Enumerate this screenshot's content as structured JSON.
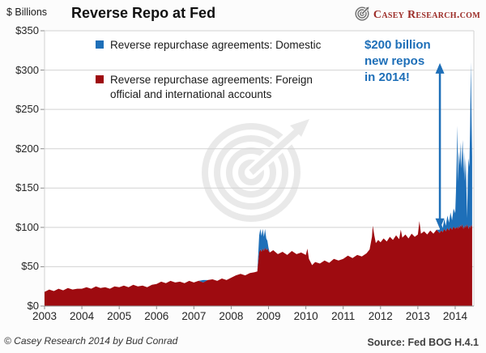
{
  "header": {
    "y_axis_title": "$ Billions",
    "title": "Reverse Repo at Fed",
    "brand": "Casey Research.com"
  },
  "annotation": {
    "lines": [
      "$200 billion",
      "new repos",
      "in 2014!"
    ],
    "color": "#1e6fb8",
    "arrow_x_year": 2013.59,
    "arrow_from_value": 98,
    "arrow_to_value": 309
  },
  "footer": {
    "copyright": "© Casey Research 2014 by Bud Conrad",
    "source": "Source: Fed BOG H.4.1"
  },
  "colors": {
    "domestic_blue": "#1e6fb8",
    "foreign_red": "#9e0b10",
    "grid": "#d2d2d2",
    "tick": "#8c8c8c",
    "watermark": "#e9e9e9",
    "brand_red": "#9c2b26"
  },
  "chart_data": {
    "type": "area",
    "stacked": true,
    "title": "Reverse Repo at Fed",
    "ylabel": "$ Billions",
    "x_range": [
      2003,
      2014.5
    ],
    "ylim": [
      0,
      350
    ],
    "grid": true,
    "legend_position": "top-inside",
    "y_tick_labels": [
      "$350",
      "$300",
      "$250",
      "$200",
      "$150",
      "$100",
      "$50",
      "$0"
    ],
    "y_tick_values": [
      350,
      300,
      250,
      200,
      150,
      100,
      50,
      0
    ],
    "x_tick_labels": [
      "2003",
      "2004",
      "2005",
      "2006",
      "2007",
      "2008",
      "2009",
      "2010",
      "2011",
      "2012",
      "2013",
      "2014"
    ],
    "series": [
      {
        "name": "Reverse repurchase agreements: Domestic",
        "color": "#1e6fb8",
        "role": "domestic"
      },
      {
        "name": "Reverse repurchase agreements: Foreign official and international accounts",
        "color": "#9e0b10",
        "role": "foreign"
      }
    ],
    "points_format": [
      "year",
      "foreign_$B",
      "domestic_$B"
    ],
    "points": [
      [
        2003.0,
        18,
        0
      ],
      [
        2003.125,
        21,
        0
      ],
      [
        2003.25,
        19,
        0
      ],
      [
        2003.375,
        22,
        0
      ],
      [
        2003.5,
        20,
        0
      ],
      [
        2003.625,
        23,
        0
      ],
      [
        2003.75,
        21,
        0
      ],
      [
        2003.875,
        22,
        0
      ],
      [
        2004.0,
        22,
        0
      ],
      [
        2004.125,
        24,
        0
      ],
      [
        2004.25,
        22,
        0
      ],
      [
        2004.375,
        25,
        0
      ],
      [
        2004.5,
        23,
        0
      ],
      [
        2004.625,
        24,
        0
      ],
      [
        2004.75,
        22,
        0
      ],
      [
        2004.875,
        25,
        0
      ],
      [
        2005.0,
        24,
        0
      ],
      [
        2005.125,
        26,
        0
      ],
      [
        2005.25,
        24,
        0
      ],
      [
        2005.375,
        27,
        0
      ],
      [
        2005.5,
        25,
        0
      ],
      [
        2005.625,
        26,
        0
      ],
      [
        2005.75,
        24,
        0
      ],
      [
        2005.875,
        27,
        0
      ],
      [
        2006.0,
        28,
        0
      ],
      [
        2006.125,
        31,
        0
      ],
      [
        2006.25,
        29,
        0
      ],
      [
        2006.375,
        32,
        0
      ],
      [
        2006.5,
        30,
        0
      ],
      [
        2006.625,
        31,
        0
      ],
      [
        2006.75,
        29,
        0
      ],
      [
        2006.875,
        32,
        0
      ],
      [
        2007.0,
        30,
        0
      ],
      [
        2007.125,
        32,
        0
      ],
      [
        2007.25,
        30,
        3
      ],
      [
        2007.375,
        33,
        0
      ],
      [
        2007.5,
        34,
        0
      ],
      [
        2007.625,
        32,
        0
      ],
      [
        2007.75,
        35,
        0
      ],
      [
        2007.875,
        33,
        0
      ],
      [
        2008.0,
        36,
        0
      ],
      [
        2008.125,
        39,
        0
      ],
      [
        2008.25,
        41,
        0
      ],
      [
        2008.375,
        39,
        0
      ],
      [
        2008.5,
        42,
        0
      ],
      [
        2008.625,
        43,
        0
      ],
      [
        2008.7,
        44,
        0
      ],
      [
        2008.75,
        68,
        22
      ],
      [
        2008.781,
        72,
        26
      ],
      [
        2008.812,
        69,
        20
      ],
      [
        2008.844,
        73,
        25
      ],
      [
        2008.875,
        70,
        18
      ],
      [
        2008.906,
        74,
        24
      ],
      [
        2008.938,
        71,
        15
      ],
      [
        2008.969,
        73,
        10
      ],
      [
        2009.0,
        70,
        4
      ],
      [
        2009.031,
        68,
        0
      ],
      [
        2009.125,
        71,
        0
      ],
      [
        2009.25,
        66,
        0
      ],
      [
        2009.375,
        69,
        0
      ],
      [
        2009.5,
        65,
        0
      ],
      [
        2009.625,
        70,
        0
      ],
      [
        2009.75,
        66,
        0
      ],
      [
        2009.875,
        68,
        0
      ],
      [
        2010.0,
        65,
        0
      ],
      [
        2010.042,
        73,
        0
      ],
      [
        2010.083,
        60,
        0
      ],
      [
        2010.167,
        52,
        0
      ],
      [
        2010.25,
        56,
        0
      ],
      [
        2010.375,
        54,
        0
      ],
      [
        2010.5,
        58,
        0
      ],
      [
        2010.625,
        55,
        0
      ],
      [
        2010.75,
        60,
        0
      ],
      [
        2010.875,
        58,
        0
      ],
      [
        2011.0,
        60,
        0
      ],
      [
        2011.125,
        64,
        0
      ],
      [
        2011.25,
        61,
        0
      ],
      [
        2011.375,
        65,
        0
      ],
      [
        2011.5,
        63,
        0
      ],
      [
        2011.625,
        67,
        0
      ],
      [
        2011.708,
        72,
        0
      ],
      [
        2011.771,
        88,
        0
      ],
      [
        2011.792,
        102,
        0
      ],
      [
        2011.833,
        90,
        0
      ],
      [
        2011.875,
        80,
        0
      ],
      [
        2011.938,
        84,
        0
      ],
      [
        2012.0,
        81,
        0
      ],
      [
        2012.083,
        86,
        0
      ],
      [
        2012.167,
        82,
        0
      ],
      [
        2012.25,
        88,
        0
      ],
      [
        2012.333,
        84,
        0
      ],
      [
        2012.417,
        90,
        0
      ],
      [
        2012.5,
        85,
        0
      ],
      [
        2012.542,
        97,
        0
      ],
      [
        2012.583,
        87,
        0
      ],
      [
        2012.667,
        91,
        0
      ],
      [
        2012.75,
        86,
        0
      ],
      [
        2012.833,
        92,
        0
      ],
      [
        2012.917,
        88,
        0
      ],
      [
        2013.0,
        91,
        0
      ],
      [
        2013.042,
        108,
        0
      ],
      [
        2013.083,
        92,
        0
      ],
      [
        2013.167,
        95,
        0
      ],
      [
        2013.25,
        91,
        0
      ],
      [
        2013.333,
        96,
        0
      ],
      [
        2013.417,
        92,
        0
      ],
      [
        2013.5,
        97,
        0
      ],
      [
        2013.583,
        93,
        4
      ],
      [
        2013.625,
        96,
        9
      ],
      [
        2013.667,
        94,
        5
      ],
      [
        2013.708,
        98,
        13
      ],
      [
        2013.75,
        95,
        7
      ],
      [
        2013.792,
        99,
        16
      ],
      [
        2013.833,
        96,
        10
      ],
      [
        2013.875,
        100,
        19
      ],
      [
        2013.917,
        97,
        12
      ],
      [
        2013.958,
        101,
        23
      ],
      [
        2014.0,
        98,
        20
      ],
      [
        2014.02,
        100,
        45
      ],
      [
        2014.04,
        99,
        85
      ],
      [
        2014.06,
        101,
        128
      ],
      [
        2014.08,
        98,
        60
      ],
      [
        2014.1,
        102,
        95
      ],
      [
        2014.12,
        99,
        80
      ],
      [
        2014.14,
        103,
        105
      ],
      [
        2014.16,
        100,
        75
      ],
      [
        2014.18,
        104,
        90
      ],
      [
        2014.2,
        101,
        110
      ],
      [
        2014.22,
        98,
        70
      ],
      [
        2014.24,
        102,
        95
      ],
      [
        2014.26,
        99,
        60
      ],
      [
        2014.28,
        103,
        85
      ],
      [
        2014.3,
        100,
        50
      ],
      [
        2014.32,
        104,
        8
      ],
      [
        2014.34,
        101,
        65
      ],
      [
        2014.36,
        98,
        90
      ],
      [
        2014.38,
        102,
        75
      ],
      [
        2014.4,
        99,
        130
      ],
      [
        2014.42,
        103,
        207
      ],
      [
        2014.44,
        100,
        140
      ],
      [
        2014.455,
        104,
        86
      ]
    ]
  }
}
